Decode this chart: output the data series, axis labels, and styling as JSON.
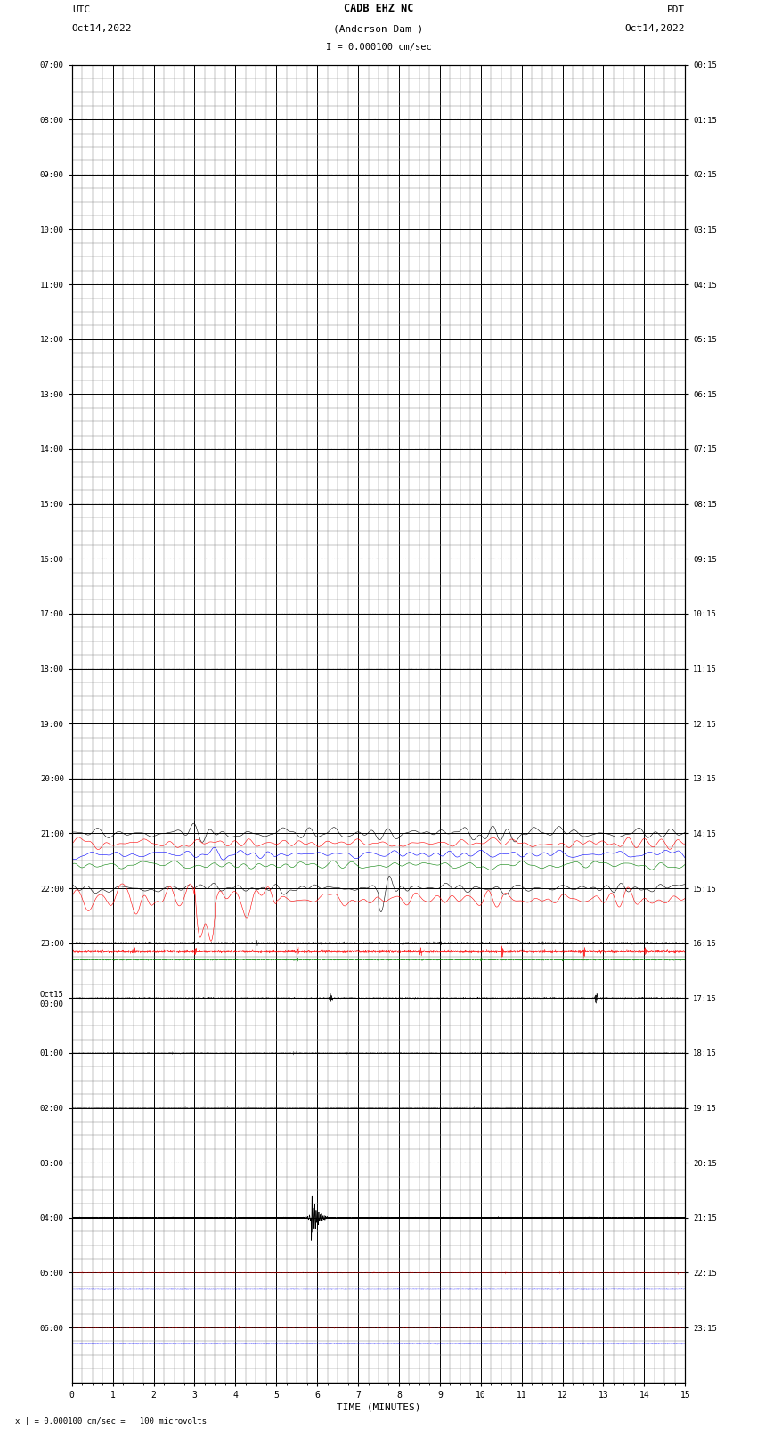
{
  "title_line1": "CADB EHZ NC",
  "title_line2": "(Anderson Dam )",
  "title_line3": "I = 0.000100 cm/sec",
  "left_header_line1": "UTC",
  "left_header_line2": "Oct14,2022",
  "right_header_line1": "PDT",
  "right_header_line2": "Oct14,2022",
  "xlabel": "TIME (MINUTES)",
  "footer": "| = 0.000100 cm/sec =   100 microvolts",
  "xlim": [
    0,
    15
  ],
  "xticks": [
    0,
    1,
    2,
    3,
    4,
    5,
    6,
    7,
    8,
    9,
    10,
    11,
    12,
    13,
    14,
    15
  ],
  "left_ytick_labels": [
    "07:00",
    "08:00",
    "09:00",
    "10:00",
    "11:00",
    "12:00",
    "13:00",
    "14:00",
    "15:00",
    "16:00",
    "17:00",
    "18:00",
    "19:00",
    "20:00",
    "21:00",
    "22:00",
    "23:00",
    "Oct15\n00:00",
    "01:00",
    "02:00",
    "03:00",
    "04:00",
    "05:00",
    "06:00"
  ],
  "right_ytick_labels": [
    "00:15",
    "01:15",
    "02:15",
    "03:15",
    "04:15",
    "05:15",
    "06:15",
    "07:15",
    "08:15",
    "09:15",
    "10:15",
    "11:15",
    "12:15",
    "13:15",
    "14:15",
    "15:15",
    "16:15",
    "17:15",
    "18:15",
    "19:15",
    "20:15",
    "21:15",
    "22:15",
    "23:15"
  ],
  "n_rows": 24,
  "background_color": "#ffffff",
  "grid_major_color": "#000000",
  "grid_minor_color": "#888888",
  "figure_width": 8.5,
  "figure_height": 16.13
}
